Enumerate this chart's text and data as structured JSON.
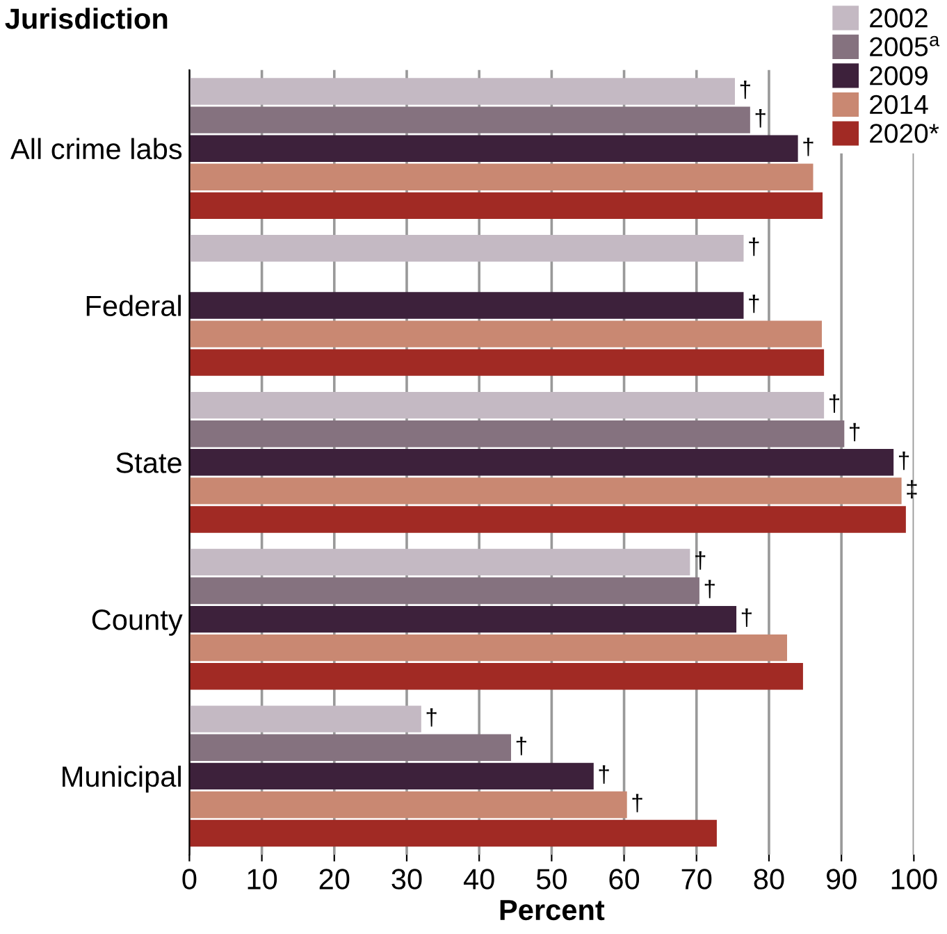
{
  "chart_data": {
    "type": "bar",
    "orientation": "horizontal",
    "ylabel": "Jurisdiction",
    "xlabel": "Percent",
    "categories": [
      "All crime labs",
      "Federal",
      "State",
      "County",
      "Municipal"
    ],
    "series": [
      {
        "name": "2002",
        "color": "#c4b9c3",
        "values": [
          75.3,
          76.5,
          87.6,
          69.1,
          32.0
        ],
        "value_labels": [
          "†",
          "†",
          "†",
          "†",
          "†"
        ]
      },
      {
        "name": "2005$^{a}$",
        "color": "#85727f",
        "values": [
          77.4,
          null,
          90.4,
          70.4,
          44.4
        ],
        "value_labels": [
          "†",
          null,
          "†",
          "†",
          "†"
        ]
      },
      {
        "name": "2009",
        "color": "#3d213b",
        "values": [
          84.0,
          76.5,
          97.2,
          75.5,
          55.8
        ],
        "value_labels": [
          "†",
          "†",
          "†",
          "†",
          "†"
        ]
      },
      {
        "name": "2014",
        "color": "#c98872",
        "values": [
          86.1,
          87.3,
          98.3,
          82.5,
          60.4
        ],
        "value_labels": [
          null,
          null,
          "‡",
          null,
          "†"
        ]
      },
      {
        "name": "2020*",
        "color": "#a12a24",
        "values": [
          87.4,
          87.6,
          98.9,
          84.7,
          72.8
        ],
        "value_labels": [
          null,
          null,
          null,
          null,
          null
        ]
      }
    ],
    "xlim": [
      0,
      100
    ],
    "xticks": [
      0,
      10,
      20,
      30,
      40,
      50,
      60,
      70,
      80,
      90,
      100
    ],
    "grid": "x",
    "legend": "top right"
  }
}
